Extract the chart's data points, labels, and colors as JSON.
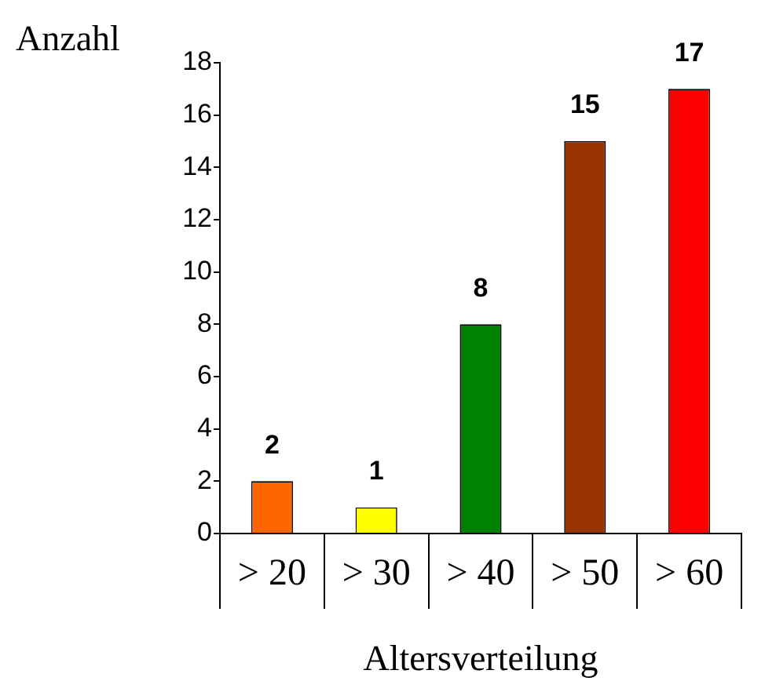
{
  "chart_data": {
    "type": "bar",
    "xlabel": "Altersverteilung",
    "ylabel": "Anzahl",
    "categories": [
      "> 20",
      "> 30",
      "> 40",
      "> 50",
      "> 60"
    ],
    "values": [
      2,
      1,
      8,
      15,
      17
    ],
    "colors": [
      "#ff6600",
      "#ffff00",
      "#008000",
      "#993300",
      "#ff0000"
    ],
    "ylim": [
      0,
      18
    ],
    "yticks": [
      0,
      2,
      4,
      6,
      8,
      10,
      12,
      14,
      16,
      18
    ],
    "data_labels": true,
    "grid": false,
    "legend": false
  }
}
